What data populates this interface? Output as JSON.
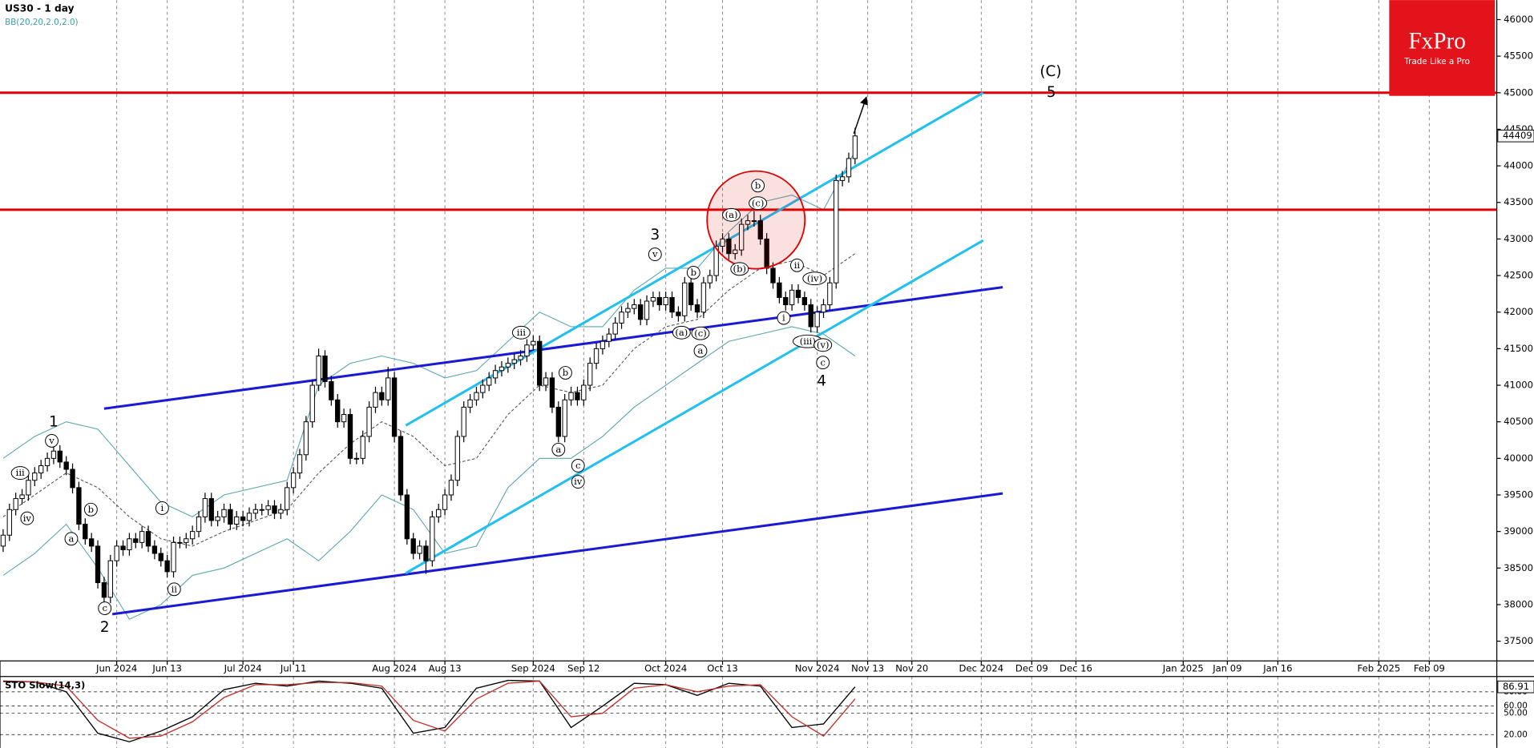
{
  "logo": {
    "title": "FxPro",
    "tagline": "Trade Like a Pro"
  },
  "chart_data": [
    {
      "type": "candlestick",
      "title": "US30 - 1 day",
      "subtitle": "BB(20,20,2.0,2.0)",
      "xlim": [
        -0.5,
        236.7
      ],
      "ylim": [
        37230,
        46267
      ],
      "yticks": [
        37500,
        38000,
        38500,
        39000,
        39500,
        40000,
        40500,
        41000,
        41500,
        42000,
        42500,
        43000,
        43500,
        44000,
        44500,
        45000,
        45500,
        46000
      ],
      "xticks": [
        {
          "value": 18,
          "label": "Jun 2024"
        },
        {
          "value": 26,
          "label": "Jun 13"
        },
        {
          "value": 38,
          "label": "Jul 2024"
        },
        {
          "value": 46,
          "label": "Jul 11"
        },
        {
          "value": 62,
          "label": "Aug 2024"
        },
        {
          "value": 70,
          "label": "Aug 13"
        },
        {
          "value": 84,
          "label": "Sep 2024"
        },
        {
          "value": 92,
          "label": "Sep 12"
        },
        {
          "value": 105,
          "label": "Oct 2024"
        },
        {
          "value": 114,
          "label": "Oct 13"
        },
        {
          "value": 129,
          "label": "Nov 2024"
        },
        {
          "value": 137,
          "label": "Nov 13"
        },
        {
          "value": 144,
          "label": "Nov 20"
        },
        {
          "value": 155,
          "label": "Dec 2024"
        },
        {
          "value": 163,
          "label": "Dec 09"
        },
        {
          "value": 170,
          "label": "Dec 16"
        },
        {
          "value": 187,
          "label": "Jan 2025"
        },
        {
          "value": 194,
          "label": "Jan 09"
        },
        {
          "value": 202,
          "label": "Jan 16"
        },
        {
          "value": 218,
          "label": "Feb 2025"
        },
        {
          "value": 226,
          "label": "Feb 09"
        }
      ],
      "up_color": "#ffffff",
      "down_color": "#000000",
      "open": [
        38800,
        38950,
        39300,
        39450,
        39500,
        39700,
        39800,
        39900,
        40000,
        40100,
        39950,
        39850,
        39600,
        39100,
        38900,
        38800,
        38300,
        38100,
        38600,
        38800,
        38750,
        38900,
        38850,
        39000,
        38800,
        38700,
        38600,
        38450,
        38850,
        38850,
        38900,
        39000,
        39200,
        39450,
        39150,
        39200,
        39300,
        39100,
        39200,
        39150,
        39250,
        39300,
        39300,
        39350,
        39250,
        39300,
        39600,
        39800,
        40050,
        40500,
        41000,
        41400,
        41050,
        40800,
        40500,
        40600,
        40000,
        40000,
        40300,
        40700,
        40900,
        40800,
        41100,
        40300,
        39500,
        38900,
        38700,
        38800,
        38600,
        39200,
        39300,
        39500,
        39700,
        40300,
        40700,
        40800,
        40900,
        41000,
        41100,
        41200,
        41250,
        41300,
        41350,
        41400,
        41550,
        41600,
        41000,
        41100,
        40700,
        40300,
        40800,
        40900,
        40800,
        41000,
        41300,
        41500,
        41600,
        41700,
        41850,
        42000,
        42050,
        42100,
        41900,
        42150,
        42200,
        42100,
        42200,
        42000,
        41950,
        42400,
        42100,
        42000,
        42400,
        42500,
        42900,
        43000,
        42800,
        42850,
        43200,
        43250,
        43250,
        43000,
        42600,
        42400,
        42200,
        42100,
        42300,
        42200,
        42100,
        41800,
        42000,
        42100,
        42400,
        43800,
        43850,
        44100
      ],
      "high": [
        39030,
        39380,
        39530,
        39580,
        39780,
        39880,
        39980,
        40080,
        40180,
        40180,
        40030,
        39930,
        39680,
        39180,
        38980,
        38880,
        38380,
        38680,
        38880,
        38880,
        38980,
        38980,
        39080,
        39080,
        38880,
        38780,
        38680,
        38930,
        38930,
        38980,
        39080,
        39280,
        39530,
        39530,
        39280,
        39380,
        39380,
        39280,
        39280,
        39330,
        39380,
        39380,
        39430,
        39430,
        39380,
        39680,
        39880,
        40130,
        40580,
        41080,
        41500,
        41480,
        41130,
        40880,
        40680,
        40680,
        40080,
        40380,
        40780,
        40980,
        40980,
        41250,
        41180,
        40380,
        39580,
        38980,
        38880,
        38880,
        39280,
        39380,
        39580,
        39780,
        40380,
        40780,
        40880,
        40980,
        41080,
        41180,
        41280,
        41330,
        41380,
        41430,
        41480,
        41630,
        41680,
        41680,
        41180,
        41180,
        40780,
        40880,
        40980,
        40980,
        41080,
        41380,
        41580,
        41680,
        41780,
        41930,
        42080,
        42130,
        42180,
        42180,
        42230,
        42280,
        42280,
        42280,
        42280,
        42080,
        42480,
        42480,
        42180,
        42480,
        42580,
        42980,
        43080,
        43080,
        42930,
        43280,
        43330,
        43380,
        43330,
        43080,
        42680,
        42480,
        42280,
        42380,
        42380,
        42280,
        42180,
        42080,
        42180,
        42480,
        43880,
        43930,
        44180,
        44520
      ],
      "low": [
        38720,
        38870,
        39220,
        39370,
        39420,
        39620,
        39720,
        39820,
        39920,
        39870,
        39770,
        39520,
        39020,
        38820,
        38720,
        38220,
        38020,
        38020,
        38520,
        38670,
        38670,
        38770,
        38770,
        38720,
        38620,
        38520,
        38370,
        38370,
        38770,
        38770,
        38820,
        38920,
        39120,
        39070,
        39070,
        39120,
        39020,
        39020,
        39070,
        39070,
        39170,
        39220,
        39220,
        39170,
        39170,
        39220,
        39520,
        39720,
        39970,
        40420,
        40920,
        40970,
        40720,
        40420,
        40420,
        39920,
        39920,
        39920,
        40220,
        40620,
        40720,
        40720,
        40220,
        39420,
        38820,
        38620,
        38620,
        38420,
        38520,
        39120,
        39220,
        39420,
        39620,
        40220,
        40620,
        40720,
        40820,
        40920,
        41020,
        41120,
        41170,
        41220,
        41270,
        41320,
        41470,
        40920,
        40920,
        40620,
        40220,
        40220,
        40720,
        40720,
        40720,
        40920,
        41220,
        41420,
        41520,
        41620,
        41770,
        41920,
        41970,
        41820,
        41820,
        42070,
        42020,
        42020,
        41920,
        41870,
        41870,
        42020,
        41920,
        41920,
        42320,
        42420,
        42820,
        42720,
        42720,
        42770,
        43120,
        43170,
        42920,
        42520,
        42320,
        42120,
        42020,
        42020,
        42120,
        42020,
        41720,
        41720,
        41920,
        42020,
        42320,
        43720,
        43770,
        44020
      ],
      "close": [
        38950,
        39300,
        39450,
        39500,
        39700,
        39800,
        39900,
        40000,
        40100,
        39950,
        39850,
        39600,
        39100,
        38900,
        38800,
        38300,
        38100,
        38600,
        38800,
        38750,
        38900,
        38850,
        39000,
        38800,
        38700,
        38600,
        38450,
        38850,
        38850,
        38900,
        39000,
        39200,
        39450,
        39150,
        39200,
        39300,
        39100,
        39200,
        39150,
        39250,
        39300,
        39300,
        39350,
        39250,
        39300,
        39600,
        39800,
        40050,
        40500,
        41000,
        41400,
        41050,
        40800,
        40500,
        40600,
        40000,
        40000,
        40300,
        40700,
        40900,
        40800,
        41100,
        40300,
        39500,
        38900,
        38700,
        38800,
        38600,
        39200,
        39300,
        39500,
        39700,
        40300,
        40700,
        40800,
        40900,
        41000,
        41100,
        41200,
        41250,
        41300,
        41350,
        41400,
        41550,
        41600,
        41000,
        41100,
        40700,
        40300,
        40800,
        40900,
        40800,
        41000,
        41300,
        41500,
        41600,
        41700,
        41850,
        42000,
        42050,
        42100,
        41900,
        42150,
        42200,
        42100,
        42200,
        42000,
        41950,
        42400,
        42100,
        42000,
        42400,
        42500,
        42900,
        43000,
        42800,
        42850,
        43200,
        43250,
        43250,
        43000,
        42600,
        42400,
        42200,
        42100,
        42300,
        42200,
        42100,
        41800,
        42000,
        42100,
        42400,
        43800,
        43850,
        44100,
        44409
      ],
      "overlay_x": [
        0,
        5,
        10,
        15,
        20,
        25,
        30,
        35,
        40,
        45,
        50,
        55,
        60,
        65,
        70,
        75,
        80,
        85,
        90,
        95,
        100,
        105,
        110,
        115,
        120,
        125,
        130,
        135
      ],
      "overlays": [
        {
          "color": "#5aa7ad",
          "style": "solid",
          "values": [
            40000,
            40300,
            40500,
            40400,
            39900,
            39400,
            39200,
            39500,
            39600,
            39700,
            41000,
            41300,
            41400,
            41300,
            41100,
            41200,
            41600,
            42000,
            41800,
            41800,
            42300,
            42600,
            42600,
            43100,
            43500,
            43600,
            43400,
            44200
          ]
        },
        {
          "color": "#555555",
          "style": "dashed",
          "values": [
            39200,
            39500,
            39800,
            39600,
            39200,
            38900,
            38800,
            39000,
            39150,
            39300,
            39800,
            40200,
            40500,
            40300,
            39900,
            40000,
            40600,
            41000,
            40900,
            41000,
            41500,
            41800,
            41900,
            42300,
            42600,
            42700,
            42500,
            42800
          ]
        },
        {
          "color": "#5aa7ad",
          "style": "solid",
          "values": [
            38400,
            38700,
            39100,
            38500,
            37800,
            38000,
            38400,
            38500,
            38700,
            38900,
            38600,
            39000,
            39500,
            39300,
            38700,
            38800,
            39600,
            40000,
            40000,
            40300,
            40700,
            41000,
            41300,
            41600,
            41700,
            41800,
            41700,
            41400
          ]
        }
      ],
      "levels": [
        {
          "value": 45000,
          "color": "#e00000"
        },
        {
          "value": 43400,
          "color": "#e00000"
        }
      ],
      "trendlines": [
        {
          "color": "#1a1ad6",
          "x": [
            16.0,
            158.4
          ],
          "y": [
            40680,
            42340
          ]
        },
        {
          "color": "#1a1ad6",
          "x": [
            17.3,
            158.4
          ],
          "y": [
            37870,
            39520
          ]
        },
        {
          "color": "#22c0ee",
          "x": [
            63.8,
            155.3
          ],
          "y": [
            40450,
            45000
          ]
        },
        {
          "color": "#22c0ee",
          "x": [
            63.8,
            155.3
          ],
          "y": [
            38430,
            42980
          ]
        }
      ],
      "arrow": {
        "color": "#000000",
        "x": [
          134.8,
          136.8
        ],
        "y": [
          44440,
          44940
        ]
      },
      "highlight": {
        "color": "#e00000",
        "x": 119.3,
        "y": 43260
      },
      "wave_labels": [
        {
          "text": "1",
          "x": 8.0,
          "y": 40490,
          "circled": false
        },
        {
          "text": "v",
          "x": 7.7,
          "y": 40240,
          "circled": true
        },
        {
          "text": "iii",
          "x": 2.7,
          "y": 39800,
          "circled": true
        },
        {
          "text": "iv",
          "x": 3.8,
          "y": 39180,
          "circled": true
        },
        {
          "text": "a",
          "x": 10.8,
          "y": 38900,
          "circled": true
        },
        {
          "text": "b",
          "x": 13.9,
          "y": 39300,
          "circled": true
        },
        {
          "text": "c",
          "x": 16.1,
          "y": 37950,
          "circled": true
        },
        {
          "text": "2",
          "x": 16.1,
          "y": 37680,
          "circled": false
        },
        {
          "text": "i",
          "x": 25.2,
          "y": 39320,
          "circled": true
        },
        {
          "text": "ii",
          "x": 27.1,
          "y": 38210,
          "circled": true
        },
        {
          "text": "iii",
          "x": 82.1,
          "y": 41720,
          "circled": true
        },
        {
          "text": "b",
          "x": 89.1,
          "y": 41170,
          "circled": true
        },
        {
          "text": "a",
          "x": 88.0,
          "y": 40120,
          "circled": true
        },
        {
          "text": "c",
          "x": 91.1,
          "y": 39900,
          "circled": true
        },
        {
          "text": "iv",
          "x": 91.1,
          "y": 39680,
          "circled": true
        },
        {
          "text": "3",
          "x": 103.3,
          "y": 43050,
          "circled": false
        },
        {
          "text": "v",
          "x": 103.3,
          "y": 42790,
          "circled": true
        },
        {
          "text": "b",
          "x": 109.4,
          "y": 42540,
          "circled": true
        },
        {
          "text": "(a)",
          "x": 107.5,
          "y": 41720,
          "circled": true
        },
        {
          "text": "(c)",
          "x": 110.5,
          "y": 41710,
          "circled": true
        },
        {
          "text": "a",
          "x": 110.5,
          "y": 41470,
          "circled": true
        },
        {
          "text": "(a)",
          "x": 115.4,
          "y": 43330,
          "circled": true
        },
        {
          "text": "b",
          "x": 119.6,
          "y": 43730,
          "circled": true
        },
        {
          "text": "(c)",
          "x": 119.6,
          "y": 43490,
          "circled": true
        },
        {
          "text": "(b)",
          "x": 116.7,
          "y": 42590,
          "circled": true
        },
        {
          "text": "ii",
          "x": 125.8,
          "y": 42640,
          "circled": true
        },
        {
          "text": "(iv)",
          "x": 128.6,
          "y": 42460,
          "circled": true
        },
        {
          "text": "i",
          "x": 123.7,
          "y": 41920,
          "circled": true
        },
        {
          "text": "(iii)",
          "x": 127.5,
          "y": 41600,
          "circled": true
        },
        {
          "text": "(v)",
          "x": 129.9,
          "y": 41550,
          "circled": true
        },
        {
          "text": "c",
          "x": 129.9,
          "y": 41310,
          "circled": true
        },
        {
          "text": "4",
          "x": 129.7,
          "y": 41050,
          "circled": false
        },
        {
          "text": "(C)",
          "x": 166.0,
          "y": 45280,
          "circled": false
        },
        {
          "text": "5",
          "x": 166.1,
          "y": 45000,
          "circled": false
        }
      ]
    },
    {
      "type": "line",
      "title": "STO Slow(14,3)",
      "xlim": [
        -0.5,
        236.7
      ],
      "ylim": [
        0,
        100
      ],
      "yticks": [
        {
          "value": 20,
          "label": "20.00"
        },
        {
          "value": 50,
          "label": "50.00"
        },
        {
          "value": 60,
          "label": "60.00"
        },
        {
          "value": 80,
          "label": "80.00"
        }
      ],
      "x": [
        0,
        5,
        10,
        15,
        20,
        25,
        30,
        35,
        40,
        45,
        50,
        55,
        60,
        65,
        70,
        75,
        80,
        85,
        90,
        95,
        100,
        105,
        110,
        115,
        120,
        125,
        130,
        135
      ],
      "series": [
        {
          "color": "#000000",
          "values": [
            95,
            94,
            80,
            22,
            10,
            25,
            45,
            83,
            92,
            88,
            95,
            92,
            85,
            22,
            30,
            85,
            96,
            95,
            30,
            60,
            92,
            90,
            75,
            92,
            88,
            30,
            35,
            86.91
          ]
        },
        {
          "color": "#c0302a",
          "values": [
            94,
            94,
            88,
            40,
            15,
            18,
            38,
            72,
            90,
            90,
            93,
            93,
            88,
            40,
            25,
            70,
            92,
            95,
            45,
            50,
            85,
            90,
            80,
            88,
            90,
            45,
            18,
            70
          ]
        }
      ]
    }
  ]
}
